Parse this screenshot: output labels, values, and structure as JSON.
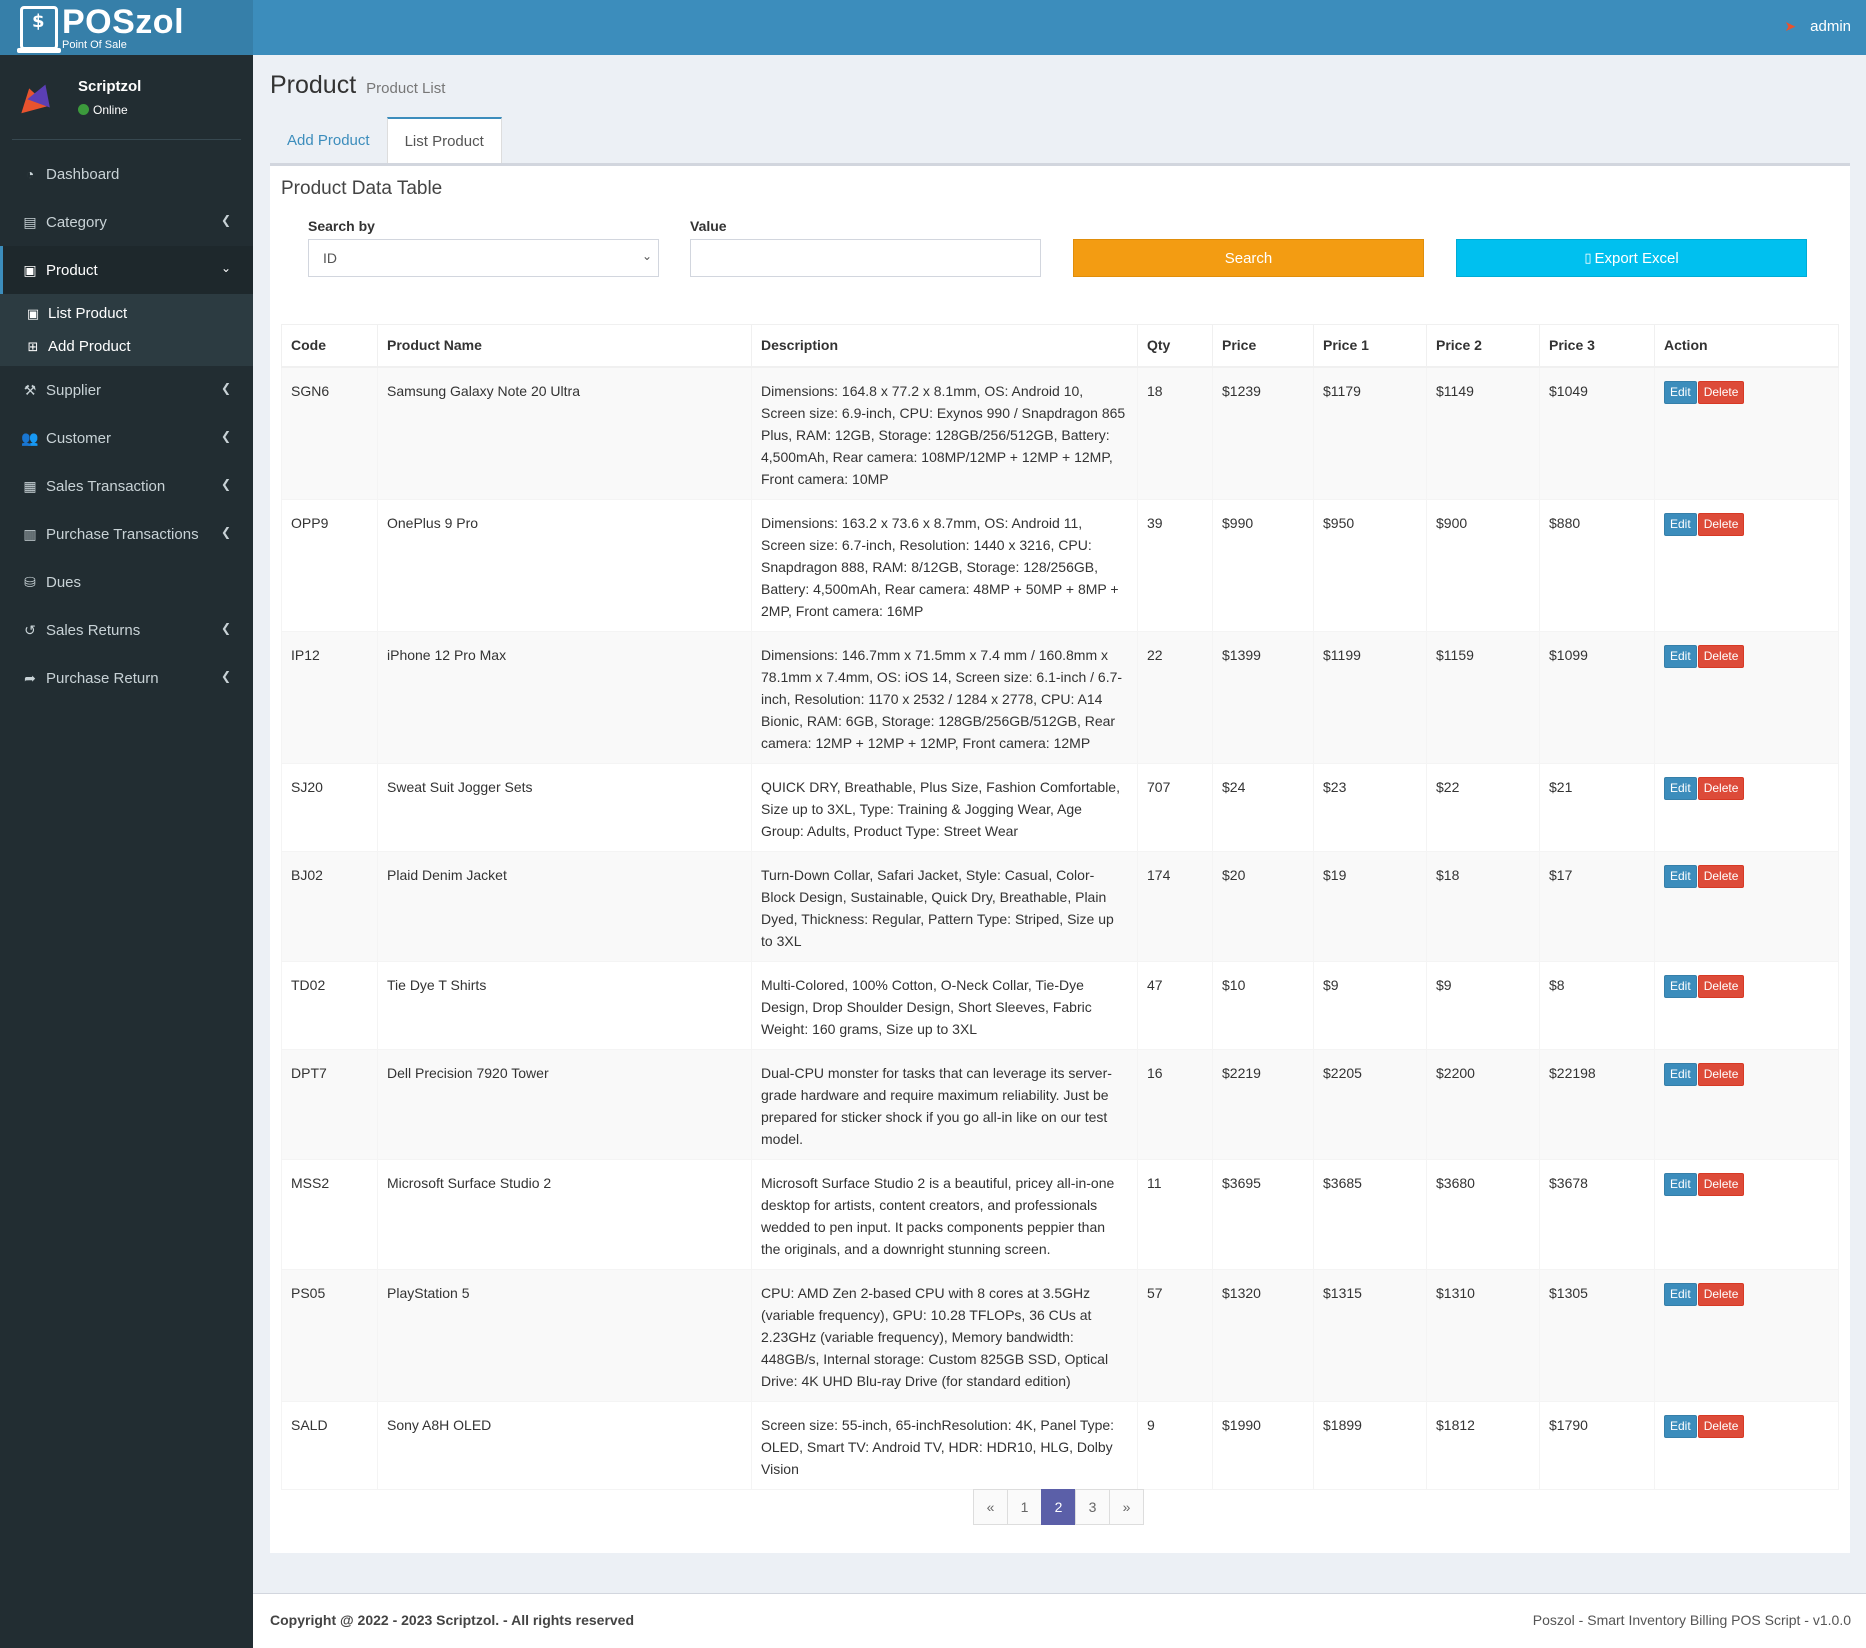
{
  "brand": {
    "title": "POSzol",
    "subtitle": "Point Of Sale"
  },
  "user": {
    "name": "Scriptzol",
    "status": "Online"
  },
  "sidebar": {
    "items": [
      {
        "label": "Dashboard",
        "icon": "dashboard-icon"
      },
      {
        "label": "Category",
        "icon": "table-icon"
      },
      {
        "label": "Product",
        "icon": "product-icon"
      },
      {
        "label": "Supplier",
        "icon": "supplier-icon"
      },
      {
        "label": "Customer",
        "icon": "users-icon"
      },
      {
        "label": "Sales Transaction",
        "icon": "building-icon"
      },
      {
        "label": "Purchase Transactions",
        "icon": "file-icon"
      },
      {
        "label": "Dues",
        "icon": "database-icon"
      },
      {
        "label": "Sales Returns",
        "icon": "undo-icon"
      },
      {
        "label": "Purchase Return",
        "icon": "share-icon"
      }
    ],
    "product_sub": [
      {
        "label": "List Product",
        "icon": "product-icon"
      },
      {
        "label": "Add Product",
        "icon": "plus-square-icon"
      }
    ]
  },
  "header": {
    "user": "admin"
  },
  "page": {
    "title": "Product",
    "subtitle": "Product List"
  },
  "tabs": [
    {
      "label": "Add Product"
    },
    {
      "label": "List Product"
    }
  ],
  "box": {
    "title": "Product Data Table"
  },
  "search": {
    "search_by_label": "Search by",
    "search_by_value": "ID",
    "value_label": "Value",
    "value_input": "",
    "search_button": "Search",
    "export_button": "Export Excel"
  },
  "table": {
    "headers": [
      "Code",
      "Product Name",
      "Description",
      "Qty",
      "Price",
      "Price 1",
      "Price 2",
      "Price 3",
      "Action"
    ],
    "edit_label": "Edit",
    "delete_label": "Delete",
    "rows": [
      {
        "code": "SGN6",
        "name": "Samsung Galaxy Note 20 Ultra",
        "desc": "Dimensions: 164.8 x 77.2 x 8.1mm, OS: Android 10, Screen size: 6.9-inch, CPU: Exynos 990 / Snapdragon 865 Plus, RAM: 12GB, Storage: 128GB/256/512GB, Battery: 4,500mAh, Rear camera: 108MP/12MP + 12MP + 12MP, Front camera: 10MP",
        "qty": "18",
        "price": "$1239",
        "price1": "$1179",
        "price2": "$1149",
        "price3": "$1049"
      },
      {
        "code": "OPP9",
        "name": "OnePlus 9 Pro",
        "desc": "Dimensions: 163.2 x 73.6 x 8.7mm, OS: Android 11, Screen size: 6.7-inch, Resolution: 1440 x 3216, CPU: Snapdragon 888, RAM: 8/12GB, Storage: 128/256GB, Battery: 4,500mAh, Rear camera: 48MP + 50MP + 8MP + 2MP, Front camera: 16MP",
        "qty": "39",
        "price": "$990",
        "price1": "$950",
        "price2": "$900",
        "price3": "$880"
      },
      {
        "code": "IP12",
        "name": "iPhone 12 Pro Max",
        "desc": "Dimensions: 146.7mm x 71.5mm x 7.4 mm / 160.8mm x 78.1mm x 7.4mm, OS: iOS 14, Screen size: 6.1-inch / 6.7-inch, Resolution: 1170 x 2532 / 1284 x 2778, CPU: A14 Bionic, RAM: 6GB, Storage: 128GB/256GB/512GB, Rear camera: 12MP + 12MP + 12MP, Front camera: 12MP",
        "qty": "22",
        "price": "$1399",
        "price1": "$1199",
        "price2": "$1159",
        "price3": "$1099"
      },
      {
        "code": "SJ20",
        "name": "Sweat Suit Jogger Sets",
        "desc": "QUICK DRY, Breathable, Plus Size, Fashion Comfortable, Size up to 3XL, Type: Training & Jogging Wear, Age Group: Adults, Product Type: Street Wear",
        "qty": "707",
        "price": "$24",
        "price1": "$23",
        "price2": "$22",
        "price3": "$21"
      },
      {
        "code": "BJ02",
        "name": "Plaid Denim Jacket",
        "desc": "Turn-Down Collar, Safari Jacket, Style: Casual, Color-Block Design, Sustainable, Quick Dry, Breathable, Plain Dyed, Thickness: Regular, Pattern Type: Striped, Size up to 3XL",
        "qty": "174",
        "price": "$20",
        "price1": "$19",
        "price2": "$18",
        "price3": "$17"
      },
      {
        "code": "TD02",
        "name": "Tie Dye T Shirts",
        "desc": "Multi-Colored, 100% Cotton, O-Neck Collar, Tie-Dye Design, Drop Shoulder Design, Short Sleeves, Fabric Weight: 160 grams, Size up to 3XL",
        "qty": "47",
        "price": "$10",
        "price1": "$9",
        "price2": "$9",
        "price3": "$8"
      },
      {
        "code": "DPT7",
        "name": "Dell Precision 7920 Tower",
        "desc": "Dual-CPU monster for tasks that can leverage its server-grade hardware and require maximum reliability. Just be prepared for sticker shock if you go all-in like on our test model.",
        "qty": "16",
        "price": "$2219",
        "price1": "$2205",
        "price2": "$2200",
        "price3": "$22198"
      },
      {
        "code": "MSS2",
        "name": "Microsoft Surface Studio 2",
        "desc": "Microsoft Surface Studio 2 is a beautiful, pricey all-in-one desktop for artists, content creators, and professionals wedded to pen input. It packs components peppier than the originals, and a downright stunning screen.",
        "qty": "11",
        "price": "$3695",
        "price1": "$3685",
        "price2": "$3680",
        "price3": "$3678"
      },
      {
        "code": "PS05",
        "name": "PlayStation 5",
        "desc": "CPU: AMD Zen 2-based CPU with 8 cores at 3.5GHz (variable frequency), GPU: 10.28 TFLOPs, 36 CUs at 2.23GHz (variable frequency), Memory bandwidth: 448GB/s, Internal storage: Custom 825GB SSD, Optical Drive: 4K UHD Blu-ray Drive (for standard edition)",
        "qty": "57",
        "price": "$1320",
        "price1": "$1315",
        "price2": "$1310",
        "price3": "$1305"
      },
      {
        "code": "SALD",
        "name": "Sony A8H OLED",
        "desc": "Screen size: 55-inch, 65-inchResolution: 4K, Panel Type: OLED, Smart TV: Android TV, HDR: HDR10, HLG, Dolby Vision",
        "qty": "9",
        "price": "$1990",
        "price1": "$1899",
        "price2": "$1812",
        "price3": "$1790"
      }
    ]
  },
  "pagination": {
    "prev": "«",
    "pages": [
      "1",
      "2",
      "3"
    ],
    "current": "2",
    "next": "»"
  },
  "footer": {
    "left": "Copyright @ 2022 - 2023 Scriptzol. - All rights reserved",
    "right": "Poszol - Smart Inventory Billing POS Script - v1.0.0"
  },
  "colors": {
    "header": "#3c8dbc",
    "sidebar": "#222d32",
    "search": "#f39c12",
    "export": "#00c0ef",
    "delete": "#dd4b39",
    "page_active": "#5b5fa8"
  }
}
